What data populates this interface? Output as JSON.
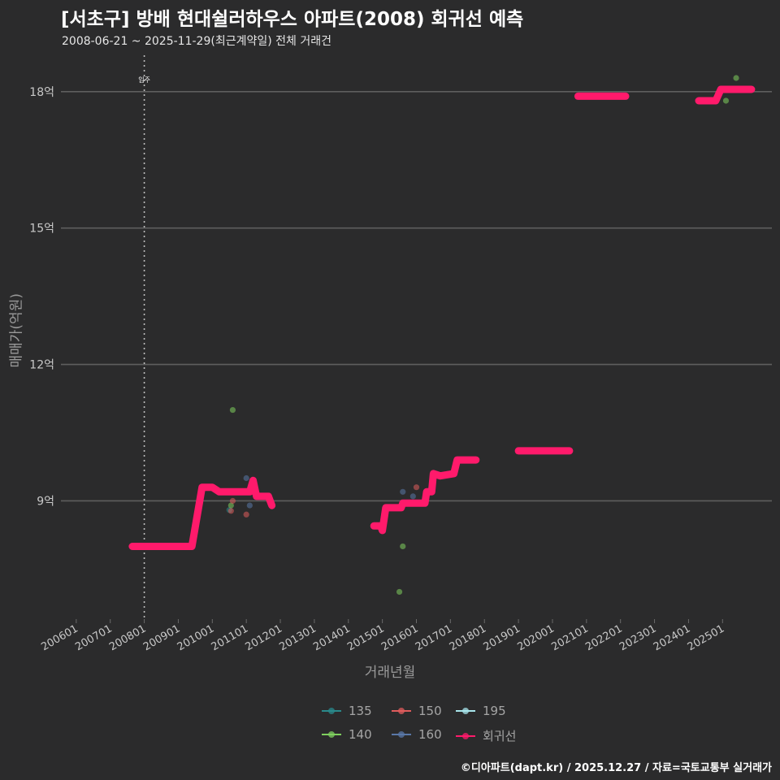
{
  "title": "[서초구] 방배 현대쉴러하우스 아파트(2008) 회귀선 예측",
  "subtitle": "2008-06-21 ~ 2025-11-29(최근계약일) 전체 거래건",
  "footer": "©디아파트(dapt.kr) / 2025.12.27 / 자료=국토교통부 실거래가",
  "chart_data": {
    "type": "scatter",
    "xlabel": "거래년월",
    "ylabel": "매매가(억원)",
    "ylim": [
      6.4,
      18.8
    ],
    "xlim": [
      2005.55,
      2026.45
    ],
    "y_ticks": [
      9,
      12,
      15,
      18
    ],
    "y_tick_labels": [
      "9억",
      "12억",
      "15억",
      "18억"
    ],
    "x_ticks": [
      2006,
      2007,
      2008,
      2009,
      2010,
      2011,
      2012,
      2013,
      2014,
      2015,
      2016,
      2017,
      2018,
      2019,
      2020,
      2021,
      2022,
      2023,
      2024,
      2025
    ],
    "x_tick_labels": [
      "200601",
      "200701",
      "200801",
      "200901",
      "201001",
      "201101",
      "201201",
      "201301",
      "201401",
      "201501",
      "201601",
      "201701",
      "201801",
      "201901",
      "202001",
      "202101",
      "202201",
      "202301",
      "202401",
      "202501"
    ],
    "annotation": {
      "x": 2008.0,
      "label": "입주"
    },
    "series": [
      {
        "name": "135",
        "color": "#2a8a8c",
        "points": [
          [
            2010.5,
            8.8
          ]
        ]
      },
      {
        "name": "140",
        "color": "#7fd05f",
        "points": [
          [
            2010.55,
            8.9
          ],
          [
            2010.6,
            11.0
          ],
          [
            2015.5,
            7.0
          ],
          [
            2015.6,
            8.0
          ],
          [
            2025.1,
            17.8
          ],
          [
            2025.4,
            18.3
          ]
        ]
      },
      {
        "name": "150",
        "color": "#e05c5c",
        "points": [
          [
            2010.55,
            8.78
          ],
          [
            2010.6,
            9.0
          ],
          [
            2011.0,
            8.7
          ],
          [
            2016.0,
            9.3
          ]
        ]
      },
      {
        "name": "160",
        "color": "#5a78a8",
        "points": [
          [
            2011.0,
            9.5
          ],
          [
            2011.1,
            8.9
          ],
          [
            2015.6,
            9.2
          ],
          [
            2015.9,
            9.1
          ]
        ]
      },
      {
        "name": "195",
        "color": "#a8e6ec",
        "points": []
      },
      {
        "name": "회귀선",
        "color": "#ff1a6b",
        "line": true,
        "segments": [
          [
            [
              2007.65,
              8.0
            ],
            [
              2009.4,
              8.0
            ],
            [
              2009.7,
              9.3
            ],
            [
              2010.0,
              9.3
            ],
            [
              2010.2,
              9.2
            ],
            [
              2011.1,
              9.2
            ],
            [
              2011.2,
              9.45
            ],
            [
              2011.3,
              9.1
            ],
            [
              2011.65,
              9.1
            ],
            [
              2011.75,
              8.9
            ]
          ],
          [
            [
              2014.75,
              8.45
            ],
            [
              2014.95,
              8.45
            ],
            [
              2015.0,
              8.35
            ],
            [
              2015.1,
              8.85
            ],
            [
              2015.55,
              8.85
            ],
            [
              2015.6,
              8.95
            ],
            [
              2016.25,
              8.95
            ],
            [
              2016.3,
              9.2
            ],
            [
              2016.45,
              9.2
            ],
            [
              2016.5,
              9.6
            ],
            [
              2016.7,
              9.55
            ],
            [
              2017.1,
              9.6
            ],
            [
              2017.2,
              9.9
            ],
            [
              2017.75,
              9.9
            ]
          ],
          [
            [
              2019.0,
              10.1
            ],
            [
              2020.5,
              10.1
            ]
          ],
          [
            [
              2020.75,
              17.9
            ],
            [
              2022.15,
              17.9
            ]
          ],
          [
            [
              2024.3,
              17.8
            ],
            [
              2024.8,
              17.8
            ],
            [
              2024.95,
              18.05
            ],
            [
              2025.85,
              18.05
            ]
          ]
        ]
      }
    ],
    "legend": [
      {
        "label": "135",
        "color": "#2a8a8c"
      },
      {
        "label": "150",
        "color": "#e05c5c"
      },
      {
        "label": "195",
        "color": "#a8e6ec"
      },
      {
        "label": "140",
        "color": "#7fd05f"
      },
      {
        "label": "160",
        "color": "#5a78a8"
      },
      {
        "label": "회귀선",
        "color": "#ff1a6b"
      }
    ]
  }
}
